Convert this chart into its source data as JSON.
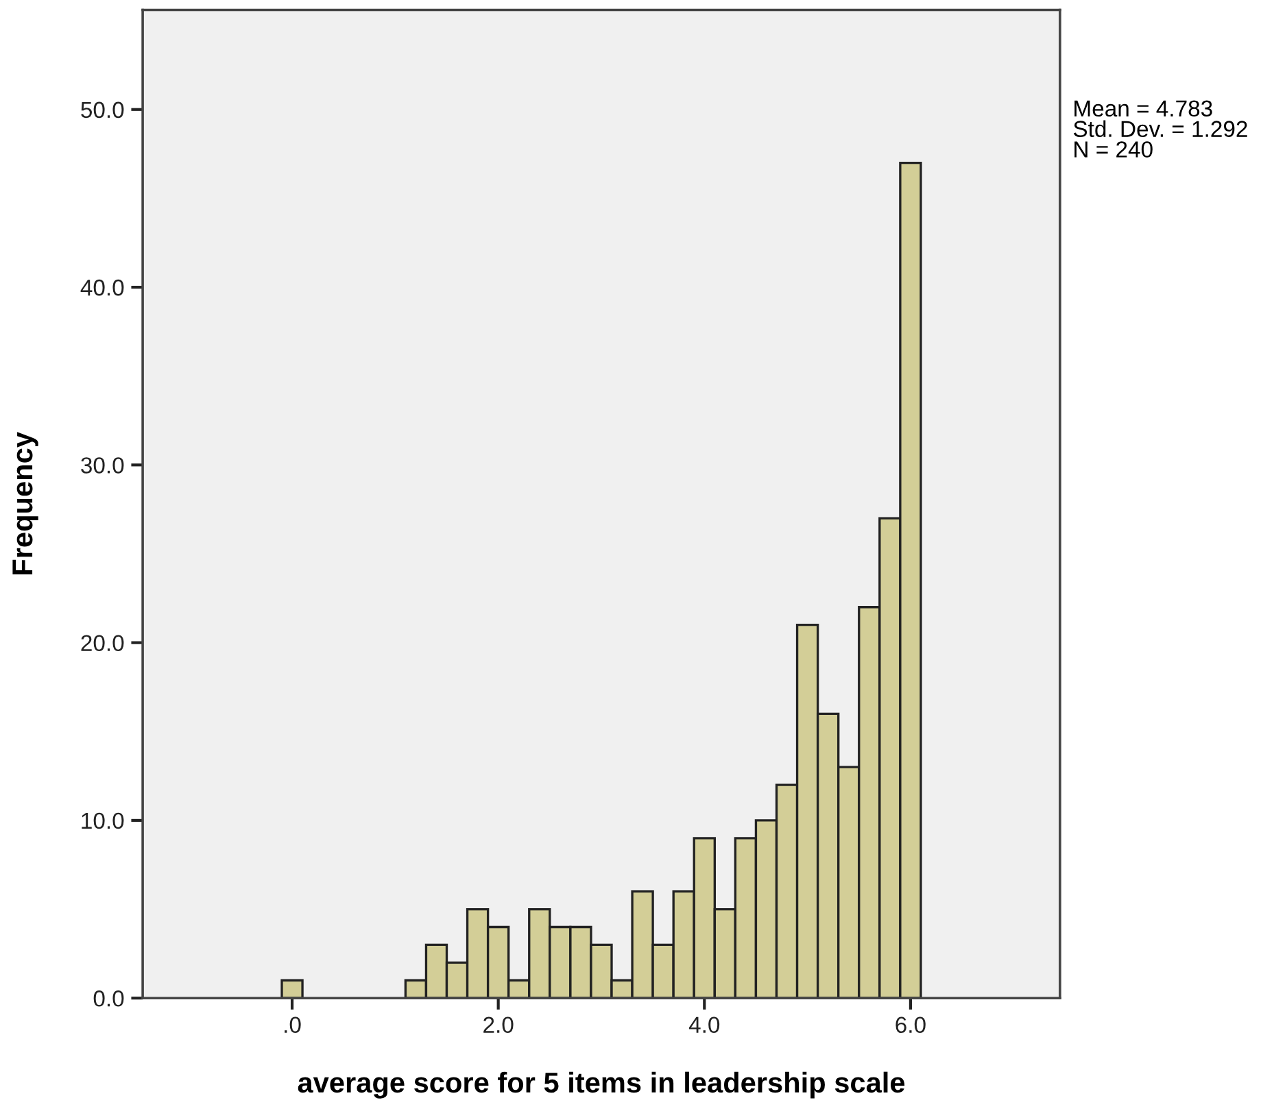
{
  "chart_data": {
    "type": "histogram",
    "xlabel": "average score for 5 items in leadership scale",
    "ylabel": "Frequency",
    "annotations": [
      "Mean = 4.783\nStd. Dev. = 1.292\nN = 240"
    ],
    "bins": [
      -0.1,
      0.1,
      0.3,
      0.5,
      0.7,
      0.9,
      1.1,
      1.3,
      1.5,
      1.7,
      1.9,
      2.1,
      2.3,
      2.5,
      2.7,
      2.9,
      3.1,
      3.3,
      3.5,
      3.7,
      3.9,
      4.1,
      4.3,
      4.5,
      4.7,
      4.9,
      5.1,
      5.3,
      5.5,
      5.7,
      5.9,
      6.1
    ],
    "values": [
      1,
      0,
      0,
      0,
      0,
      0,
      1,
      3,
      2,
      5,
      4,
      1,
      5,
      4,
      4,
      3,
      1,
      6,
      3,
      6,
      9,
      5,
      9,
      10,
      12,
      21,
      16,
      13,
      22,
      27,
      47
    ],
    "color": "#d3ce97",
    "xlim": [
      -1.45,
      7.45
    ],
    "ylim": [
      0,
      55.6
    ],
    "xticks": [
      {
        "value": 0,
        "label": ".0"
      },
      {
        "value": 2,
        "label": "2.0"
      },
      {
        "value": 4,
        "label": "4.0"
      },
      {
        "value": 6,
        "label": "6.0"
      }
    ],
    "yticks": [
      {
        "value": 0,
        "label": "0.0"
      },
      {
        "value": 10,
        "label": "10.0"
      },
      {
        "value": 20,
        "label": "20.0"
      },
      {
        "value": 30,
        "label": "30.0"
      },
      {
        "value": 40,
        "label": "40.0"
      },
      {
        "value": 50,
        "label": "50.0"
      }
    ],
    "grid": false,
    "legend": false
  }
}
